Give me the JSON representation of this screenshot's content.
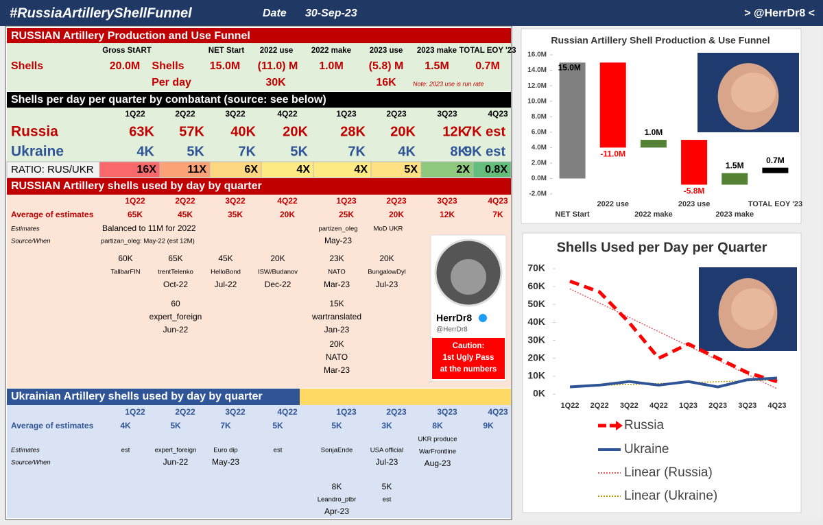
{
  "header": {
    "title": "#RussiaArtilleryShellFunnel",
    "date_label": "Date",
    "date": "30-Sep-23",
    "handle": "> @HerrDr8 <"
  },
  "funnel": {
    "title": "RUSSIAN Artillery Production and Use Funnel",
    "headers": [
      "Gross StART",
      "NET Start",
      "2022 use",
      "2022 make",
      "2023 use",
      "2023 make",
      "TOTAL EOY '23"
    ],
    "shells_row": [
      "Shells",
      "20.0M",
      "Shells",
      "15.0M",
      "(11.0) M",
      "1.0M",
      "(5.8) M",
      "1.5M",
      "0.7M"
    ],
    "per_day_row": [
      "Per day",
      "30K",
      "16K"
    ],
    "note": "Note: 2023 use is run rate"
  },
  "combatants": {
    "title": "Shells per day per quarter by combatant (source: see below)",
    "quarters": [
      "1Q22",
      "2Q22",
      "3Q22",
      "4Q22",
      "1Q23",
      "2Q23",
      "3Q23",
      "4Q23"
    ],
    "russia": {
      "name": "Russia",
      "values": [
        "63K",
        "57K",
        "40K",
        "20K",
        "28K",
        "20K",
        "12K",
        "7K est"
      ]
    },
    "ukraine": {
      "name": "Ukraine",
      "values": [
        "4K",
        "5K",
        "7K",
        "5K",
        "7K",
        "4K",
        "8K",
        "9K est"
      ]
    },
    "ratio": {
      "name": "RATIO: RUS/UKR",
      "values": [
        "16X",
        "11X",
        "6X",
        "4X",
        "4X",
        "5X",
        "2X",
        "0.8X"
      ]
    }
  },
  "russian": {
    "title": "RUSSIAN Artillery shells used by day by quarter",
    "average_label": "Average of estimates",
    "average": [
      "65K",
      "45K",
      "35K",
      "20K",
      "25K",
      "20K",
      "12K",
      "7K"
    ],
    "estimates_label": "Estimates",
    "source_label": "Source/When",
    "estimates_note": "Balanced to 11M for 2022",
    "source_note": "partizan_oleg: May-22 (est 12M)",
    "latest_sources": [
      null,
      null,
      null,
      null,
      [
        "partizen_oleg",
        "May-23"
      ],
      [
        "MoD UKR"
      ]
    ],
    "estimate_columns": [
      [
        [
          "60K",
          "TallbarFIN"
        ]
      ],
      [
        [
          "65K",
          "trentTelenko",
          "Oct-22"
        ],
        [
          "60",
          "expert_foreign",
          "Jun-22"
        ]
      ],
      [
        [
          "45K",
          "HelloBond",
          "Jul-22"
        ]
      ],
      [
        [
          "20K",
          "ISW/Budanov",
          "Dec-22"
        ]
      ],
      [
        [
          "23K",
          "NATO",
          "Mar-23"
        ],
        [
          "15K",
          "wartranslated",
          "Jan-23"
        ],
        [
          "20K",
          "NATO",
          "Mar-23"
        ]
      ],
      [
        [
          "20K",
          "BungalowDyl",
          "Jul-23"
        ]
      ]
    ]
  },
  "profile": {
    "name": "HerrDr8",
    "handle": "@HerrDr8",
    "caution": [
      "Caution:",
      "1st Ugly Pass",
      "at the numbers"
    ]
  },
  "ukrainian": {
    "title": "Ukrainian Artillery shells used by day by quarter",
    "average_label": "Average of estimates",
    "average": [
      "4K",
      "5K",
      "7K",
      "5K",
      "5K",
      "3K",
      "8K",
      "9K"
    ],
    "estimates_label": "Estimates",
    "source_label": "Source/When",
    "estimate_columns": [
      [
        [
          "est"
        ]
      ],
      [
        [
          "expert_foreign",
          "Jun-22"
        ]
      ],
      [
        [
          "Euro dip",
          "May-23"
        ]
      ],
      [
        [
          "est"
        ]
      ],
      [
        [
          "SonjaEnde"
        ],
        [
          "8K",
          "Leandro_ptbr",
          "Apr-23"
        ]
      ],
      [
        [
          "USA official",
          "Jul-23"
        ],
        [
          "5K",
          "est"
        ]
      ],
      [
        [
          "UKR produce",
          "WarFrontline",
          "Aug-23"
        ]
      ]
    ]
  },
  "chart_data": [
    {
      "type": "waterfall",
      "title": "Russian Artillery Shell Production & Use Funnel",
      "categories": [
        "NET Start",
        "2022 use",
        "2022 make",
        "2023 use",
        "2023 make",
        "TOTAL EOY '23"
      ],
      "values": [
        15.0,
        -11.0,
        1.0,
        -5.8,
        1.5,
        0.7
      ],
      "value_labels": [
        "15.0M",
        "-11.0M",
        "1.0M",
        "-5.8M",
        "1.5M",
        "0.7M"
      ],
      "colors": [
        "#808080",
        "#ff0000",
        "#548235",
        "#ff0000",
        "#548235",
        "#000000"
      ],
      "ylim": [
        -2,
        16
      ],
      "yticks": [
        {
          "value": -2,
          "label": "-2.0M"
        },
        {
          "value": 0,
          "label": "0.0M"
        },
        {
          "value": 2,
          "label": "2.0M"
        },
        {
          "value": 4,
          "label": "4.0M"
        },
        {
          "value": 6,
          "label": "6.0M"
        },
        {
          "value": 8,
          "label": "8.0M"
        },
        {
          "value": 10,
          "label": "10.0M"
        },
        {
          "value": 12,
          "label": "12.0M"
        },
        {
          "value": 14,
          "label": "14.0M"
        },
        {
          "value": 16,
          "label": "16.0M"
        }
      ]
    },
    {
      "type": "line",
      "title": "Shells Used per Day per Quarter",
      "categories": [
        "1Q22",
        "2Q22",
        "3Q22",
        "4Q22",
        "1Q23",
        "2Q23",
        "3Q23",
        "4Q23"
      ],
      "series": [
        {
          "name": "Russia",
          "color": "#ff0000",
          "values": [
            63,
            57,
            40,
            20,
            28,
            20,
            12,
            7
          ],
          "trendline": {
            "name": "Linear (Russia)",
            "color": "#e05a5a"
          }
        },
        {
          "name": "Ukraine",
          "color": "#2f5597",
          "values": [
            4,
            5,
            7,
            5,
            7,
            4,
            8,
            9
          ],
          "trendline": {
            "name": "Linear (Ukraine)",
            "color": "#b89a00"
          }
        }
      ],
      "ylim": [
        0,
        70
      ],
      "yticks": [
        {
          "value": 0,
          "label": "0K"
        },
        {
          "value": 10,
          "label": "10K"
        },
        {
          "value": 20,
          "label": "20K"
        },
        {
          "value": 30,
          "label": "30K"
        },
        {
          "value": 40,
          "label": "40K"
        },
        {
          "value": 50,
          "label": "50K"
        },
        {
          "value": 60,
          "label": "60K"
        },
        {
          "value": 70,
          "label": "70K"
        }
      ]
    }
  ]
}
